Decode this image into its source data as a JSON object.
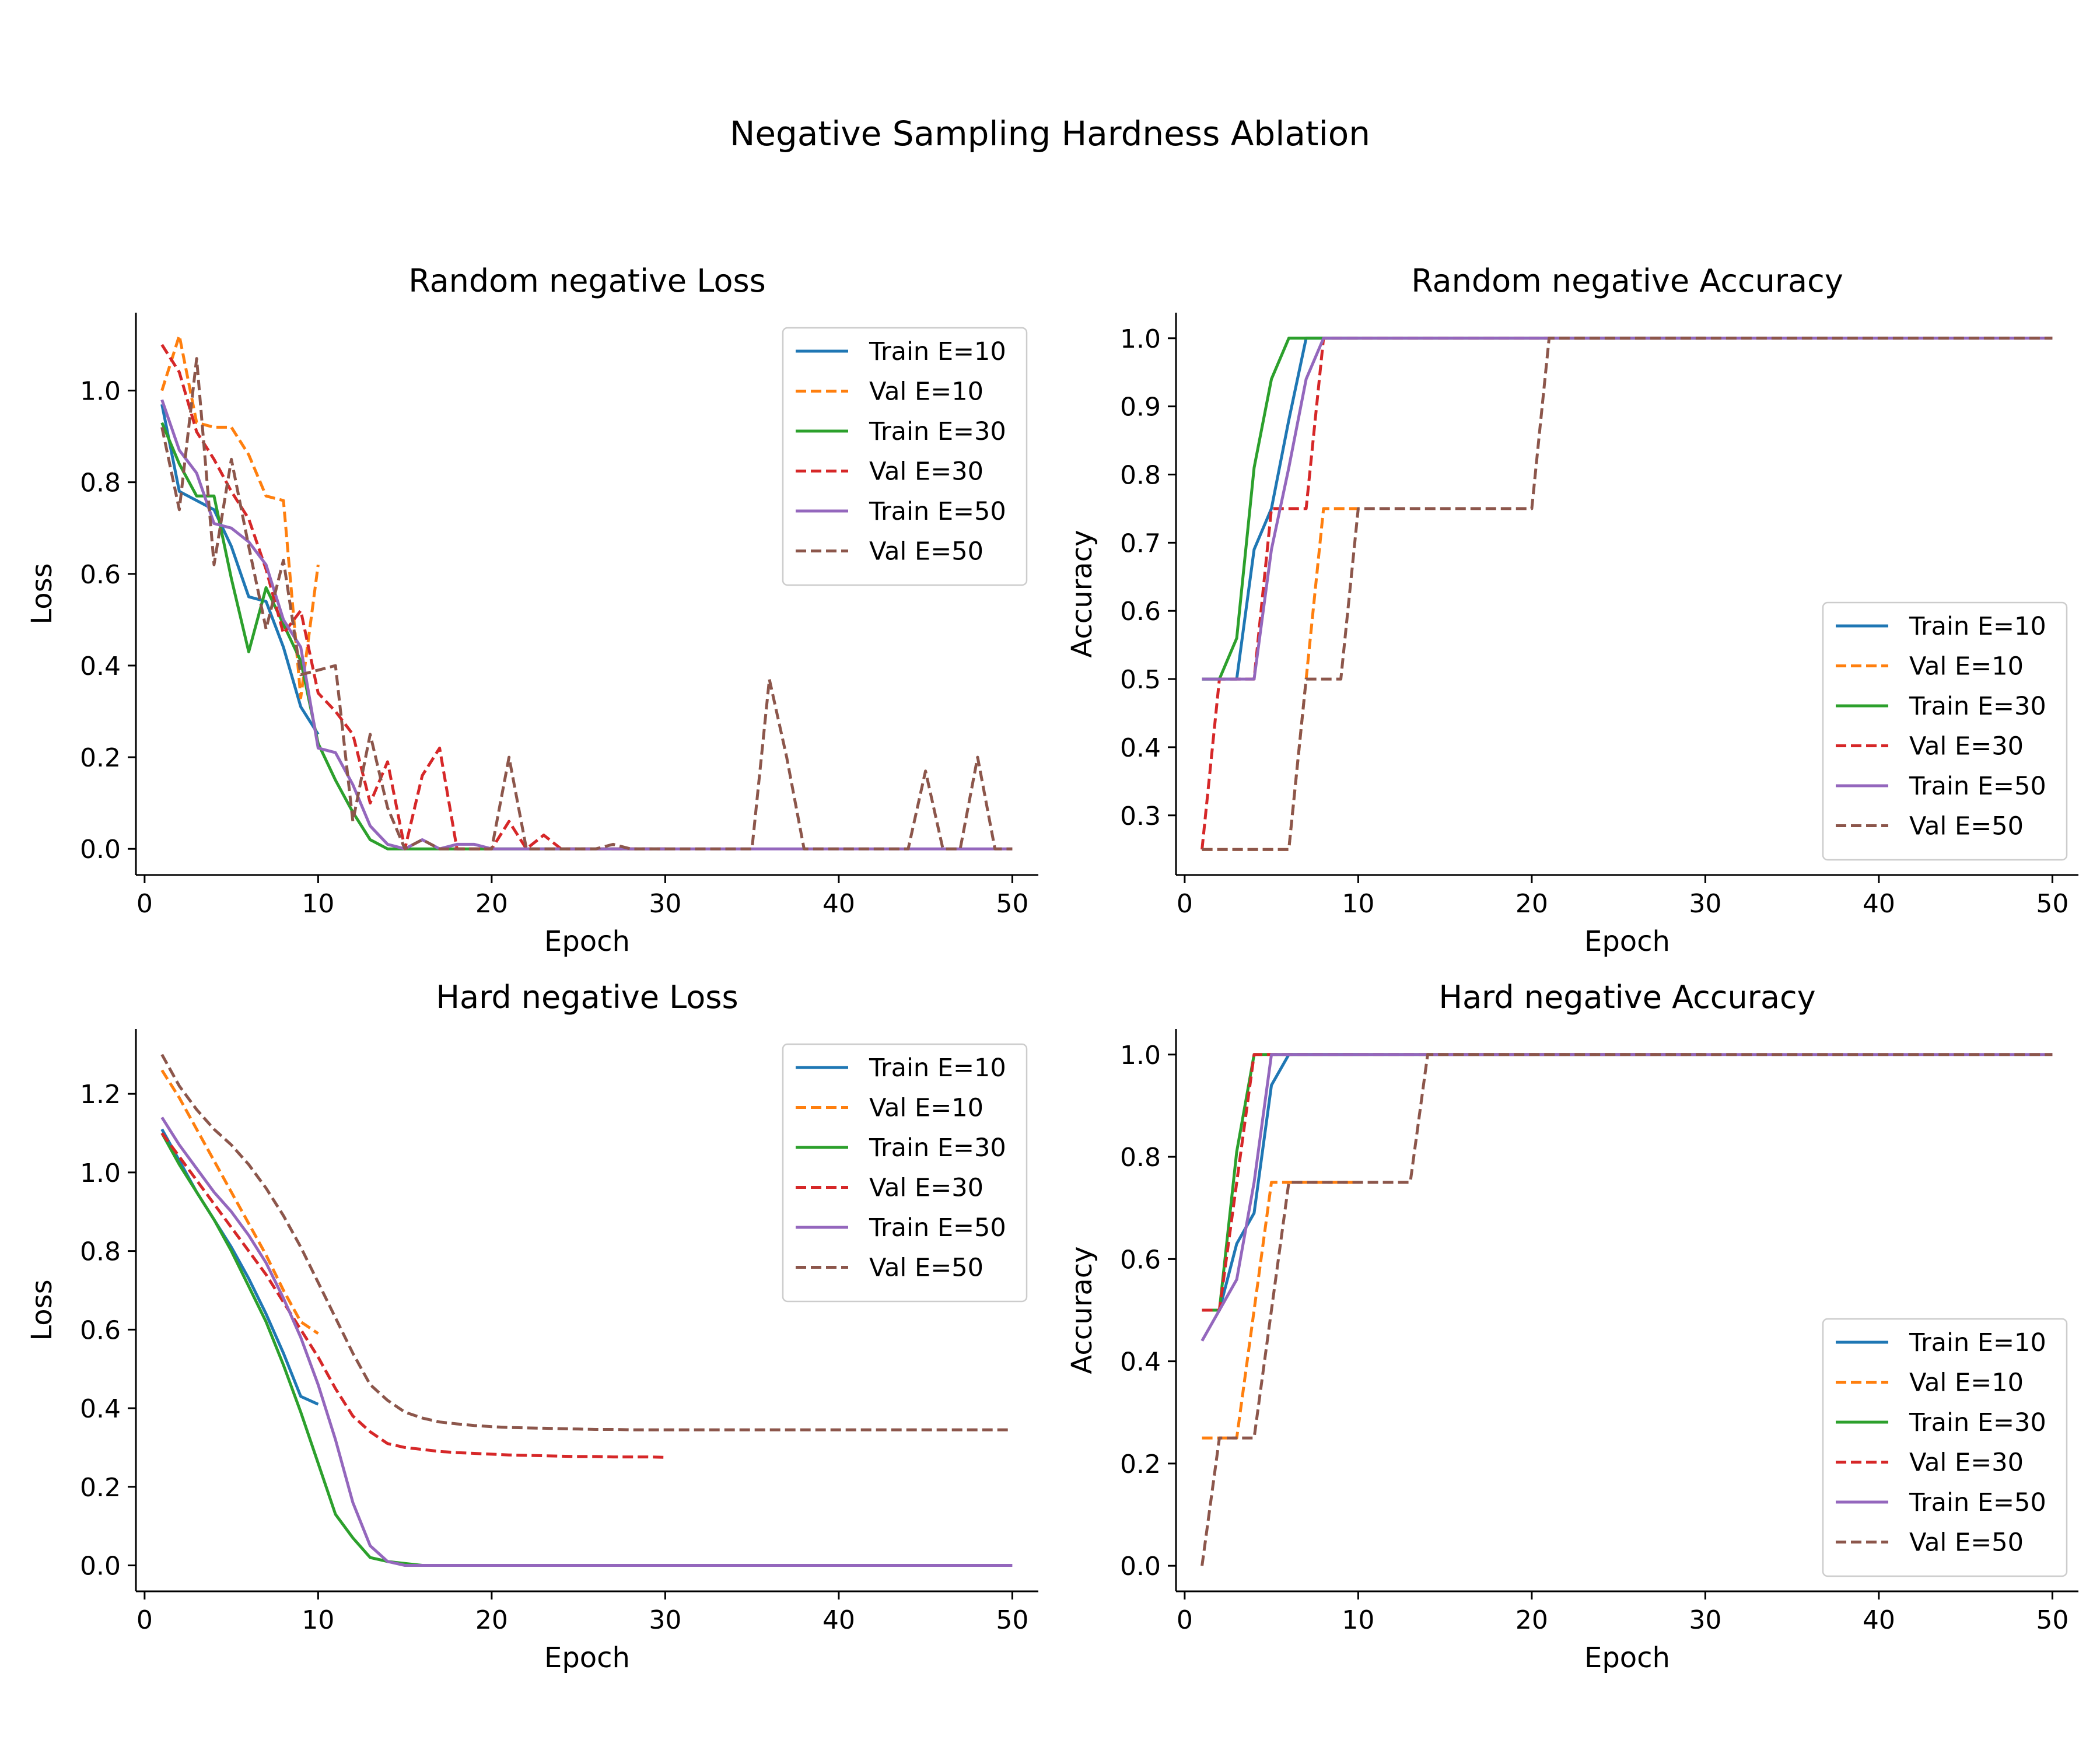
{
  "figure": {
    "title": "Negative Sampling Hardness Ablation"
  },
  "colors": {
    "E10": "#1f77b4",
    "E10_val": "#ff7f0e",
    "E30": "#2ca02c",
    "E30_val": "#d62728",
    "E50": "#9467bd",
    "E50_val": "#8c564b"
  },
  "chart_data": [
    {
      "id": "random_loss",
      "type": "line",
      "title": "Random negative Loss",
      "xlabel": "Epoch",
      "ylabel": "Loss",
      "xlim": [
        -0.5,
        51.5
      ],
      "ylim": [
        -0.057,
        1.17
      ],
      "xticks": [
        0,
        10,
        20,
        30,
        40,
        50
      ],
      "yticks": [
        0.0,
        0.2,
        0.4,
        0.6,
        0.8,
        1.0
      ],
      "ytick_decimals": 1,
      "legend": "upper right",
      "grid": false,
      "series": [
        {
          "name": "Train E=10",
          "color_key": "E10",
          "dashed": false,
          "x_start": 1,
          "values": [
            0.97,
            0.78,
            0.76,
            0.74,
            0.66,
            0.55,
            0.54,
            0.44,
            0.31,
            0.25
          ]
        },
        {
          "name": "Val E=10",
          "color_key": "E10_val",
          "dashed": true,
          "x_start": 1,
          "values": [
            1.0,
            1.12,
            0.93,
            0.92,
            0.92,
            0.86,
            0.77,
            0.76,
            0.33,
            0.62
          ]
        },
        {
          "name": "Train E=30",
          "color_key": "E30",
          "dashed": false,
          "x_start": 1,
          "values": [
            0.93,
            0.84,
            0.77,
            0.77,
            0.59,
            0.43,
            0.57,
            0.49,
            0.41,
            0.23,
            0.15,
            0.08,
            0.02,
            0.0,
            0.0,
            0.0,
            0.0,
            0.0,
            0.0,
            0.0,
            0.0,
            0.0,
            0.0,
            0.0,
            0.0,
            0.0,
            0.0,
            0.0,
            0.0,
            0.0
          ]
        },
        {
          "name": "Val E=30",
          "color_key": "E30_val",
          "dashed": true,
          "x_start": 1,
          "values": [
            1.1,
            1.04,
            0.91,
            0.85,
            0.78,
            0.72,
            0.61,
            0.47,
            0.52,
            0.34,
            0.3,
            0.25,
            0.1,
            0.19,
            0.0,
            0.16,
            0.22,
            0.0,
            0.0,
            0.0,
            0.06,
            0.0,
            0.03,
            0.0,
            0.0,
            0.0,
            0.0,
            0.0,
            0.0,
            0.0
          ]
        },
        {
          "name": "Train E=50",
          "color_key": "E50",
          "dashed": false,
          "x_start": 1,
          "values": [
            0.98,
            0.87,
            0.82,
            0.71,
            0.7,
            0.67,
            0.62,
            0.5,
            0.44,
            0.22,
            0.21,
            0.14,
            0.05,
            0.01,
            0.0,
            0.02,
            0.0,
            0.01,
            0.01,
            0.0,
            0.0,
            0.0,
            0.0,
            0.0,
            0.0,
            0.0,
            0.0,
            0.0,
            0.0,
            0.0,
            0.0,
            0.0,
            0.0,
            0.0,
            0.0,
            0.0,
            0.0,
            0.0,
            0.0,
            0.0,
            0.0,
            0.0,
            0.0,
            0.0,
            0.0,
            0.0,
            0.0,
            0.0,
            0.0,
            0.0
          ]
        },
        {
          "name": "Val E=50",
          "color_key": "E50_val",
          "dashed": true,
          "x_start": 1,
          "values": [
            0.92,
            0.74,
            1.07,
            0.62,
            0.85,
            0.66,
            0.48,
            0.63,
            0.38,
            0.39,
            0.4,
            0.06,
            0.25,
            0.09,
            0.0,
            0.02,
            0.0,
            0.0,
            0.0,
            0.0,
            0.2,
            0.0,
            0.0,
            0.0,
            0.0,
            0.0,
            0.01,
            0.0,
            0.0,
            0.0,
            0.0,
            0.0,
            0.0,
            0.0,
            0.0,
            0.37,
            0.2,
            0.0,
            0.0,
            0.0,
            0.0,
            0.0,
            0.0,
            0.0,
            0.17,
            0.0,
            0.0,
            0.2,
            0.0,
            0.0
          ]
        }
      ]
    },
    {
      "id": "random_acc",
      "type": "line",
      "title": "Random negative Accuracy",
      "xlabel": "Epoch",
      "ylabel": "Accuracy",
      "xlim": [
        -0.5,
        51.5
      ],
      "ylim": [
        0.2125,
        1.0375
      ],
      "xticks": [
        0,
        10,
        20,
        30,
        40,
        50
      ],
      "yticks": [
        0.3,
        0.4,
        0.5,
        0.6,
        0.7,
        0.8,
        0.9,
        1.0
      ],
      "ytick_decimals": 1,
      "legend": "lower right",
      "grid": false,
      "series": [
        {
          "name": "Train E=10",
          "color_key": "E10",
          "dashed": false,
          "x_start": 1,
          "values": [
            0.5,
            0.5,
            0.5,
            0.69,
            0.75,
            0.88,
            1.0,
            1.0,
            1.0,
            1.0
          ]
        },
        {
          "name": "Val E=10",
          "color_key": "E10_val",
          "dashed": true,
          "x_start": 1,
          "values": [
            0.25,
            0.25,
            0.25,
            0.25,
            0.25,
            0.25,
            0.5,
            0.75,
            0.75,
            0.75
          ]
        },
        {
          "name": "Train E=30",
          "color_key": "E30",
          "dashed": false,
          "x_start": 1,
          "values": [
            0.5,
            0.5,
            0.56,
            0.81,
            0.94,
            1.0,
            1.0,
            1.0,
            1.0,
            1.0,
            1.0,
            1.0,
            1.0,
            1.0,
            1.0,
            1.0,
            1.0,
            1.0,
            1.0,
            1.0,
            1.0,
            1.0,
            1.0,
            1.0,
            1.0,
            1.0,
            1.0,
            1.0,
            1.0,
            1.0
          ]
        },
        {
          "name": "Val E=30",
          "color_key": "E30_val",
          "dashed": true,
          "x_start": 1,
          "values": [
            0.25,
            0.5,
            0.5,
            0.5,
            0.75,
            0.75,
            0.75,
            1.0,
            1.0,
            1.0,
            1.0,
            1.0,
            1.0,
            1.0,
            1.0,
            1.0,
            1.0,
            1.0,
            1.0,
            1.0,
            1.0,
            1.0,
            1.0,
            1.0,
            1.0,
            1.0,
            1.0,
            1.0,
            1.0,
            1.0
          ]
        },
        {
          "name": "Train E=50",
          "color_key": "E50",
          "dashed": false,
          "x_start": 1,
          "values": [
            0.5,
            0.5,
            0.5,
            0.5,
            0.69,
            0.81,
            0.94,
            1.0,
            1.0,
            1.0,
            1.0,
            1.0,
            1.0,
            1.0,
            1.0,
            1.0,
            1.0,
            1.0,
            1.0,
            1.0,
            1.0,
            1.0,
            1.0,
            1.0,
            1.0,
            1.0,
            1.0,
            1.0,
            1.0,
            1.0,
            1.0,
            1.0,
            1.0,
            1.0,
            1.0,
            1.0,
            1.0,
            1.0,
            1.0,
            1.0,
            1.0,
            1.0,
            1.0,
            1.0,
            1.0,
            1.0,
            1.0,
            1.0,
            1.0,
            1.0
          ]
        },
        {
          "name": "Val E=50",
          "color_key": "E50_val",
          "dashed": true,
          "x_start": 1,
          "values": [
            0.25,
            0.25,
            0.25,
            0.25,
            0.25,
            0.25,
            0.5,
            0.5,
            0.5,
            0.75,
            0.75,
            0.75,
            0.75,
            0.75,
            0.75,
            0.75,
            0.75,
            0.75,
            0.75,
            0.75,
            1.0,
            1.0,
            1.0,
            1.0,
            1.0,
            1.0,
            1.0,
            1.0,
            1.0,
            1.0,
            1.0,
            1.0,
            1.0,
            1.0,
            1.0,
            1.0,
            1.0,
            1.0,
            1.0,
            1.0,
            1.0,
            1.0,
            1.0,
            1.0,
            1.0,
            1.0,
            1.0,
            1.0,
            1.0,
            1.0
          ]
        }
      ]
    },
    {
      "id": "hard_loss",
      "type": "line",
      "title": "Hard negative Loss",
      "xlabel": "Epoch",
      "ylabel": "Loss",
      "xlim": [
        -0.5,
        51.5
      ],
      "ylim": [
        -0.066,
        1.365
      ],
      "xticks": [
        0,
        10,
        20,
        30,
        40,
        50
      ],
      "yticks": [
        0.0,
        0.2,
        0.4,
        0.6,
        0.8,
        1.0,
        1.2
      ],
      "ytick_decimals": 1,
      "legend": "upper right",
      "grid": false,
      "series": [
        {
          "name": "Train E=10",
          "color_key": "E10",
          "dashed": false,
          "x_start": 1,
          "values": [
            1.11,
            1.03,
            0.95,
            0.88,
            0.81,
            0.73,
            0.64,
            0.54,
            0.43,
            0.41
          ]
        },
        {
          "name": "Val E=10",
          "color_key": "E10_val",
          "dashed": true,
          "x_start": 1,
          "values": [
            1.26,
            1.19,
            1.11,
            1.03,
            0.95,
            0.87,
            0.79,
            0.7,
            0.62,
            0.59
          ]
        },
        {
          "name": "Train E=30",
          "color_key": "E30",
          "dashed": false,
          "x_start": 1,
          "values": [
            1.1,
            1.02,
            0.95,
            0.88,
            0.8,
            0.71,
            0.62,
            0.51,
            0.39,
            0.26,
            0.13,
            0.07,
            0.02,
            0.01,
            0.005,
            0.0,
            0.0,
            0.0,
            0.0,
            0.0,
            0.0,
            0.0,
            0.0,
            0.0,
            0.0,
            0.0,
            0.0,
            0.0,
            0.0,
            0.0
          ]
        },
        {
          "name": "Val E=30",
          "color_key": "E30_val",
          "dashed": true,
          "x_start": 1,
          "values": [
            1.1,
            1.04,
            0.98,
            0.92,
            0.86,
            0.8,
            0.74,
            0.67,
            0.6,
            0.53,
            0.45,
            0.38,
            0.34,
            0.31,
            0.3,
            0.295,
            0.29,
            0.287,
            0.285,
            0.283,
            0.281,
            0.28,
            0.279,
            0.278,
            0.277,
            0.277,
            0.276,
            0.276,
            0.276,
            0.275
          ]
        },
        {
          "name": "Train E=50",
          "color_key": "E50",
          "dashed": false,
          "x_start": 1,
          "values": [
            1.14,
            1.07,
            1.01,
            0.95,
            0.9,
            0.84,
            0.77,
            0.68,
            0.58,
            0.46,
            0.32,
            0.16,
            0.05,
            0.01,
            0.0,
            0.0,
            0.0,
            0.0,
            0.0,
            0.0,
            0.0,
            0.0,
            0.0,
            0.0,
            0.0,
            0.0,
            0.0,
            0.0,
            0.0,
            0.0,
            0.0,
            0.0,
            0.0,
            0.0,
            0.0,
            0.0,
            0.0,
            0.0,
            0.0,
            0.0,
            0.0,
            0.0,
            0.0,
            0.0,
            0.0,
            0.0,
            0.0,
            0.0,
            0.0,
            0.0
          ]
        },
        {
          "name": "Val E=50",
          "color_key": "E50_val",
          "dashed": true,
          "x_start": 1,
          "values": [
            1.3,
            1.22,
            1.16,
            1.11,
            1.07,
            1.02,
            0.96,
            0.89,
            0.81,
            0.72,
            0.63,
            0.54,
            0.46,
            0.42,
            0.39,
            0.375,
            0.365,
            0.36,
            0.356,
            0.353,
            0.351,
            0.35,
            0.349,
            0.348,
            0.347,
            0.346,
            0.346,
            0.345,
            0.345,
            0.345,
            0.345,
            0.345,
            0.345,
            0.345,
            0.345,
            0.345,
            0.345,
            0.345,
            0.345,
            0.345,
            0.345,
            0.345,
            0.345,
            0.345,
            0.345,
            0.345,
            0.345,
            0.345,
            0.345,
            0.345
          ]
        }
      ]
    },
    {
      "id": "hard_acc",
      "type": "line",
      "title": "Hard negative Accuracy",
      "xlabel": "Epoch",
      "ylabel": "Accuracy",
      "xlim": [
        -0.5,
        51.5
      ],
      "ylim": [
        -0.05,
        1.05
      ],
      "xticks": [
        0,
        10,
        20,
        30,
        40,
        50
      ],
      "yticks": [
        0.0,
        0.2,
        0.4,
        0.6,
        0.8,
        1.0
      ],
      "ytick_decimals": 1,
      "legend": "lower right",
      "grid": false,
      "series": [
        {
          "name": "Train E=10",
          "color_key": "E10",
          "dashed": false,
          "x_start": 1,
          "values": [
            0.5,
            0.5,
            0.63,
            0.69,
            0.94,
            1.0,
            1.0,
            1.0,
            1.0,
            1.0
          ]
        },
        {
          "name": "Val E=10",
          "color_key": "E10_val",
          "dashed": true,
          "x_start": 1,
          "values": [
            0.25,
            0.25,
            0.25,
            0.5,
            0.75,
            0.75,
            0.75,
            0.75,
            0.75,
            0.75
          ]
        },
        {
          "name": "Train E=30",
          "color_key": "E30",
          "dashed": false,
          "x_start": 1,
          "values": [
            0.5,
            0.5,
            0.81,
            1.0,
            1.0,
            1.0,
            1.0,
            1.0,
            1.0,
            1.0,
            1.0,
            1.0,
            1.0,
            1.0,
            1.0,
            1.0,
            1.0,
            1.0,
            1.0,
            1.0,
            1.0,
            1.0,
            1.0,
            1.0,
            1.0,
            1.0,
            1.0,
            1.0,
            1.0,
            1.0
          ]
        },
        {
          "name": "Val E=30",
          "color_key": "E30_val",
          "dashed": true,
          "x_start": 1,
          "values": [
            0.5,
            0.5,
            0.75,
            1.0,
            1.0,
            1.0,
            1.0,
            1.0,
            1.0,
            1.0,
            1.0,
            1.0,
            1.0,
            1.0,
            1.0,
            1.0,
            1.0,
            1.0,
            1.0,
            1.0,
            1.0,
            1.0,
            1.0,
            1.0,
            1.0,
            1.0,
            1.0,
            1.0,
            1.0,
            1.0
          ]
        },
        {
          "name": "Train E=50",
          "color_key": "E50",
          "dashed": false,
          "x_start": 1,
          "values": [
            0.44,
            0.5,
            0.56,
            0.75,
            1.0,
            1.0,
            1.0,
            1.0,
            1.0,
            1.0,
            1.0,
            1.0,
            1.0,
            1.0,
            1.0,
            1.0,
            1.0,
            1.0,
            1.0,
            1.0,
            1.0,
            1.0,
            1.0,
            1.0,
            1.0,
            1.0,
            1.0,
            1.0,
            1.0,
            1.0,
            1.0,
            1.0,
            1.0,
            1.0,
            1.0,
            1.0,
            1.0,
            1.0,
            1.0,
            1.0,
            1.0,
            1.0,
            1.0,
            1.0,
            1.0,
            1.0,
            1.0,
            1.0,
            1.0,
            1.0
          ]
        },
        {
          "name": "Val E=50",
          "color_key": "E50_val",
          "dashed": true,
          "x_start": 1,
          "values": [
            0.0,
            0.25,
            0.25,
            0.25,
            0.5,
            0.75,
            0.75,
            0.75,
            0.75,
            0.75,
            0.75,
            0.75,
            0.75,
            1.0,
            1.0,
            1.0,
            1.0,
            1.0,
            1.0,
            1.0,
            1.0,
            1.0,
            1.0,
            1.0,
            1.0,
            1.0,
            1.0,
            1.0,
            1.0,
            1.0,
            1.0,
            1.0,
            1.0,
            1.0,
            1.0,
            1.0,
            1.0,
            1.0,
            1.0,
            1.0,
            1.0,
            1.0,
            1.0,
            1.0,
            1.0,
            1.0,
            1.0,
            1.0,
            1.0,
            1.0
          ]
        }
      ]
    }
  ]
}
